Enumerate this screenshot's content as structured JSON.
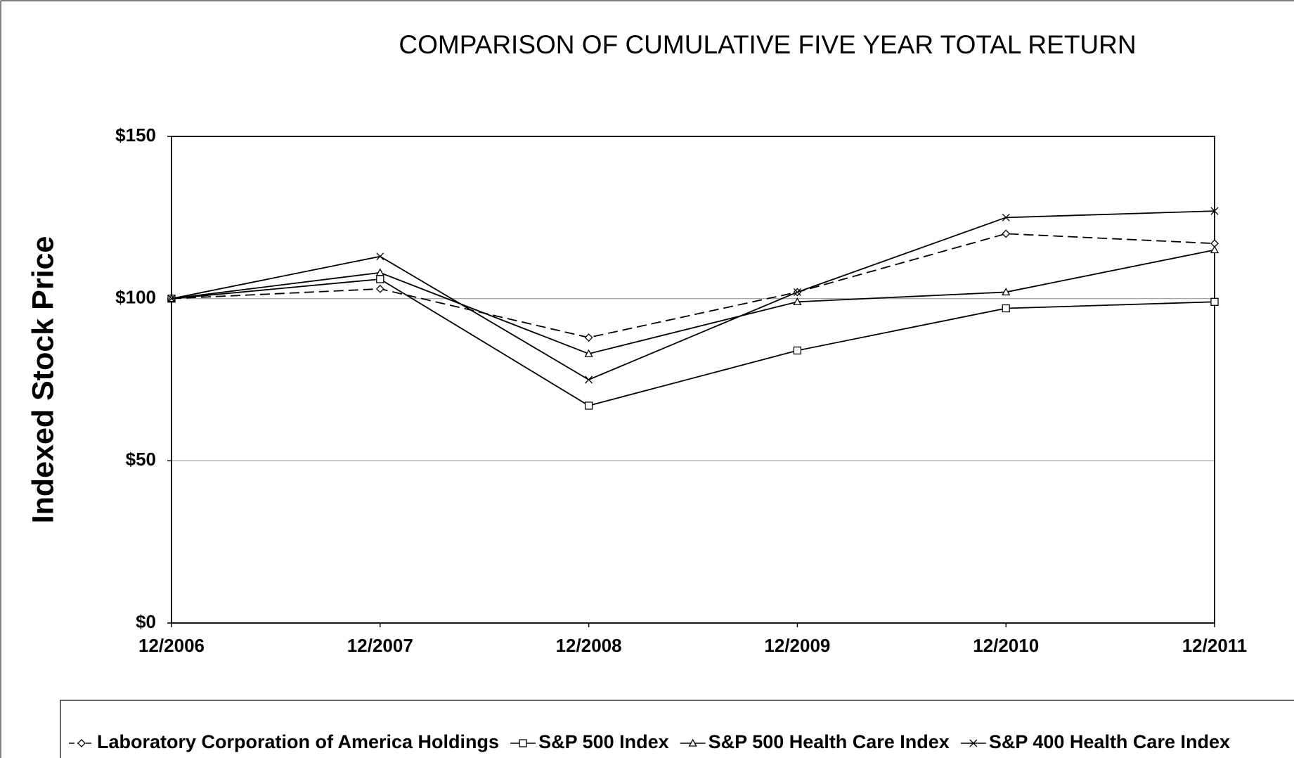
{
  "chart_data": {
    "type": "line",
    "title": "COMPARISON OF CUMULATIVE FIVE YEAR TOTAL RETURN",
    "y_label": "Indexed Stock Price",
    "categories": [
      "12/2006",
      "12/2007",
      "12/2008",
      "12/2009",
      "12/2010",
      "12/2011"
    ],
    "ylim": [
      0,
      150
    ],
    "yticks": [
      {
        "value": 0,
        "label": "$0"
      },
      {
        "value": 50,
        "label": "$50"
      },
      {
        "value": 100,
        "label": "$100"
      },
      {
        "value": 150,
        "label": "$150"
      }
    ],
    "grid": true,
    "legend": "bottom",
    "series": [
      {
        "name": "Laboratory Corporation of America Holdings",
        "color": "#000000",
        "dashed": true,
        "marker": "diamond",
        "values": [
          100,
          103,
          88,
          102,
          120,
          117
        ]
      },
      {
        "name": "S&P 500 Index",
        "color": "#000000",
        "dashed": false,
        "marker": "square",
        "values": [
          100,
          106,
          67,
          84,
          97,
          99
        ]
      },
      {
        "name": "S&P 500 Health Care Index",
        "color": "#000000",
        "dashed": false,
        "marker": "triangle",
        "values": [
          100,
          108,
          83,
          99,
          102,
          115
        ]
      },
      {
        "name": "S&P 400 Health Care Index",
        "color": "#000000",
        "dashed": false,
        "marker": "x",
        "values": [
          100,
          113,
          75,
          102,
          125,
          127
        ]
      }
    ]
  }
}
